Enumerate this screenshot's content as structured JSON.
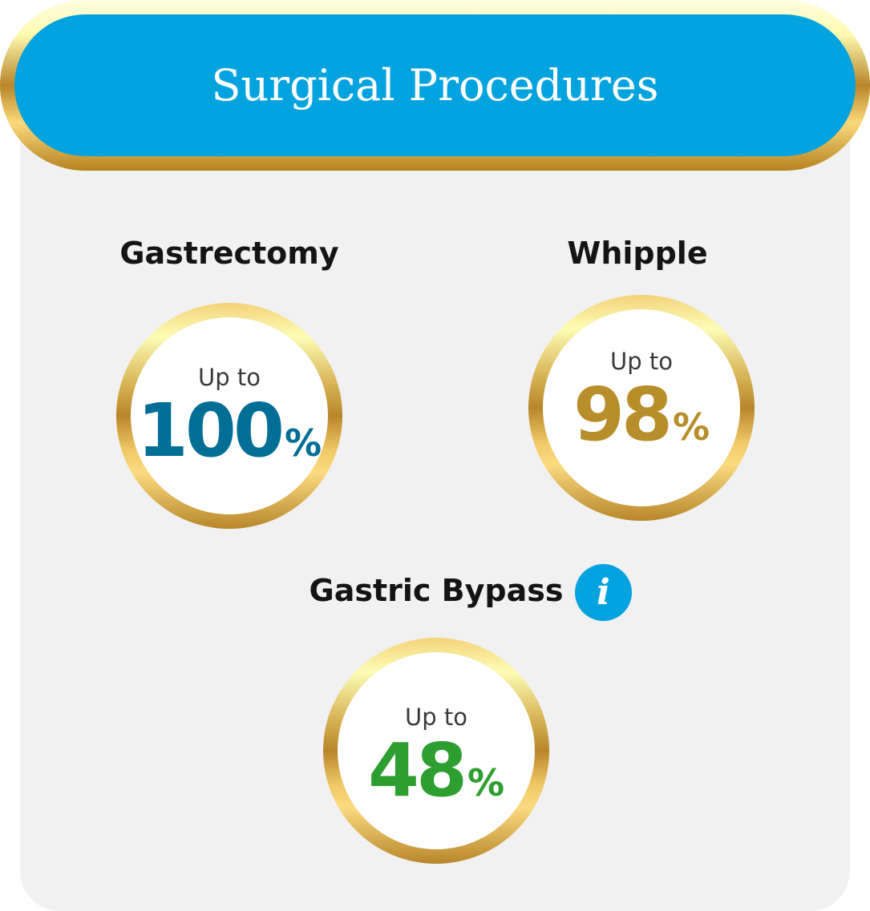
{
  "header": {
    "title": "Surgical Procedures"
  },
  "procedures": [
    {
      "name": "Gastrectomy",
      "prefix": "Up to",
      "value": "100",
      "unit": "%",
      "color": "#016e96"
    },
    {
      "name": "Whipple",
      "prefix": "Up to",
      "value": "98",
      "unit": "%",
      "color": "#b88e2a"
    },
    {
      "name": "Gastric Bypass",
      "prefix": "Up to",
      "value": "48",
      "unit": "%",
      "color": "#2d9e2f"
    }
  ],
  "colors": {
    "header_bg": "#03a3df",
    "panel_bg": "#f1f1f1",
    "gold": "#b8862a"
  },
  "icons": {
    "info": "info-icon"
  }
}
